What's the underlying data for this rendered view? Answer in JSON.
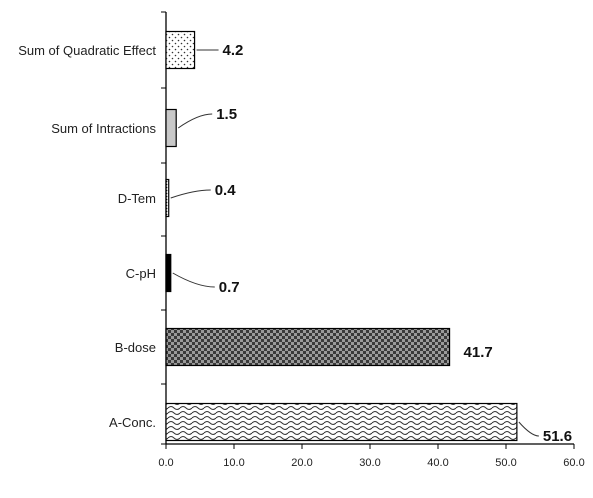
{
  "chart_data": {
    "type": "bar",
    "orientation": "horizontal",
    "categories": [
      "A-Conc.",
      "B-dose",
      "C-pH",
      "D-Tem",
      "Sum of Intractions",
      "Sum of Quadratic Effect"
    ],
    "values": [
      51.6,
      41.7,
      0.7,
      0.4,
      1.5,
      4.2
    ],
    "data_labels": [
      "51.6",
      "41.7",
      "0.7",
      "0.4",
      "1.5",
      "4.2"
    ],
    "xlim": [
      0,
      60
    ],
    "x_ticks": [
      "0.0",
      "10.0",
      "20.0",
      "30.0",
      "40.0",
      "50.0",
      "60.0"
    ],
    "title": "",
    "xlabel": "",
    "ylabel": "",
    "grid": false,
    "legend": "none",
    "bar_patterns": [
      "wave-hatch",
      "dark-checker",
      "solid-black",
      "dense-dots",
      "light-gray",
      "sparse-dots"
    ],
    "colors": {
      "outline": "#000000",
      "axis": "#000000",
      "light_gray": "#c8c8c8",
      "dark_checker": "#6e6e6e"
    }
  }
}
